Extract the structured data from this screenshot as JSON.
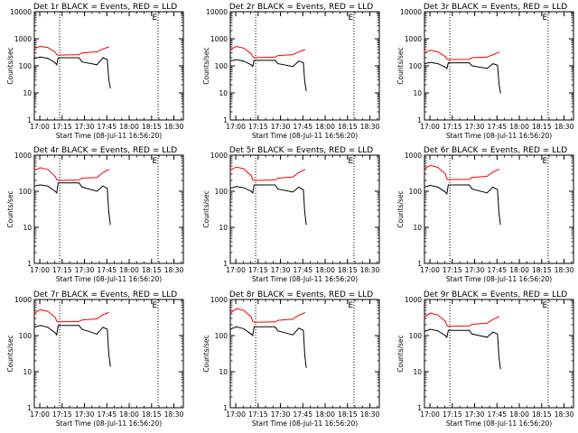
{
  "figure": {
    "xlabel": "Start Time (08-Jul-11 16:56:20)",
    "ylabel": "Counts/sec",
    "x_ticks": [
      "17:00",
      "17:15",
      "17:30",
      "17:45",
      "18:00",
      "18:15",
      "18:30"
    ],
    "marker_label": "E",
    "colors": {
      "events": "#000000",
      "lld": "#ff0000",
      "axis": "#000000"
    }
  },
  "chart_data": [
    {
      "type": "line",
      "title": "Det 1r BLACK = Events, RED = LLD",
      "xlabel": "Start Time (08-Jul-11 16:56:20)",
      "ylabel": "Counts/sec",
      "xlim_min": [
        0,
        100
      ],
      "ylim": [
        1,
        10000
      ],
      "y_ticks": [
        "1",
        "10",
        "100",
        "1000",
        "10000"
      ],
      "log_y": true,
      "vlines_min": [
        17,
        83
      ],
      "marker_min": 79,
      "data_end_min": 51,
      "series": [
        {
          "color": "#000000",
          "x_min": [
            0,
            4,
            9,
            14,
            15,
            16,
            30,
            32,
            42,
            46,
            49,
            50,
            51
          ],
          "values": [
            190,
            210,
            190,
            130,
            110,
            200,
            200,
            140,
            110,
            200,
            170,
            30,
            15
          ]
        },
        {
          "color": "#ff0000",
          "x_min": [
            0,
            4,
            9,
            14,
            15,
            16,
            30,
            32,
            42,
            46,
            49,
            50
          ],
          "values": [
            450,
            520,
            480,
            320,
            260,
            250,
            260,
            300,
            330,
            420,
            480,
            500
          ]
        }
      ]
    },
    {
      "type": "line",
      "title": "Det 2r BLACK = Events, RED = LLD",
      "xlabel": "Start Time (08-Jul-11 16:56:20)",
      "ylabel": "Counts/sec",
      "xlim_min": [
        0,
        100
      ],
      "ylim": [
        1,
        10000
      ],
      "y_ticks": [
        "1",
        "10",
        "100",
        "1000",
        "10000"
      ],
      "log_y": true,
      "vlines_min": [
        17,
        83
      ],
      "marker_min": 79,
      "data_end_min": 51,
      "series": [
        {
          "color": "#000000",
          "x_min": [
            0,
            4,
            9,
            14,
            15,
            16,
            30,
            32,
            42,
            46,
            49,
            50,
            51
          ],
          "values": [
            150,
            170,
            150,
            110,
            95,
            160,
            160,
            120,
            95,
            150,
            130,
            25,
            12
          ]
        },
        {
          "color": "#ff0000",
          "x_min": [
            0,
            4,
            9,
            14,
            15,
            16,
            30,
            32,
            42,
            46,
            49,
            50
          ],
          "values": [
            400,
            520,
            450,
            280,
            220,
            200,
            210,
            240,
            260,
            330,
            380,
            400
          ]
        }
      ]
    },
    {
      "type": "line",
      "title": "Det 3r BLACK = Events, RED = LLD",
      "xlabel": "Start Time (08-Jul-11 16:56:20)",
      "ylabel": "Counts/sec",
      "xlim_min": [
        0,
        100
      ],
      "ylim": [
        1,
        10000
      ],
      "y_ticks": [
        "1",
        "10",
        "100",
        "1000",
        "10000"
      ],
      "log_y": true,
      "vlines_min": [
        17,
        83
      ],
      "marker_min": 79,
      "data_end_min": 51,
      "series": [
        {
          "color": "#000000",
          "x_min": [
            0,
            4,
            9,
            14,
            15,
            16,
            30,
            32,
            42,
            46,
            49,
            50,
            51
          ],
          "values": [
            120,
            135,
            120,
            90,
            80,
            130,
            130,
            100,
            80,
            120,
            105,
            22,
            10
          ]
        },
        {
          "color": "#ff0000",
          "x_min": [
            0,
            4,
            9,
            14,
            15,
            16,
            30,
            32,
            42,
            46,
            49,
            50
          ],
          "values": [
            300,
            380,
            330,
            220,
            180,
            170,
            175,
            200,
            210,
            260,
            300,
            320
          ]
        }
      ]
    },
    {
      "type": "line",
      "title": "Det 4r BLACK = Events, RED = LLD",
      "xlabel": "Start Time (08-Jul-11 16:56:20)",
      "ylabel": "Counts/sec",
      "xlim_min": [
        0,
        100
      ],
      "ylim": [
        1,
        1000
      ],
      "y_ticks": [
        "1",
        "10",
        "100",
        "1000"
      ],
      "log_y": true,
      "vlines_min": [
        17,
        83
      ],
      "marker_min": 79,
      "data_end_min": 51,
      "series": [
        {
          "color": "#000000",
          "x_min": [
            0,
            4,
            9,
            14,
            15,
            16,
            30,
            32,
            42,
            46,
            49,
            50,
            51
          ],
          "values": [
            140,
            150,
            140,
            100,
            90,
            170,
            170,
            130,
            100,
            140,
            120,
            25,
            12
          ]
        },
        {
          "color": "#ff0000",
          "x_min": [
            0,
            4,
            9,
            14,
            15,
            16,
            30,
            32,
            42,
            46,
            49,
            50
          ],
          "values": [
            380,
            450,
            400,
            260,
            210,
            200,
            205,
            230,
            240,
            330,
            380,
            400
          ]
        }
      ]
    },
    {
      "type": "line",
      "title": "Det 5r BLACK = Events, RED = LLD",
      "xlabel": "Start Time (08-Jul-11 16:56:20)",
      "ylabel": "Counts/sec",
      "xlim_min": [
        0,
        100
      ],
      "ylim": [
        1,
        1000
      ],
      "y_ticks": [
        "1",
        "10",
        "100",
        "1000"
      ],
      "log_y": true,
      "vlines_min": [
        17,
        83
      ],
      "marker_min": 79,
      "data_end_min": 51,
      "series": [
        {
          "color": "#000000",
          "x_min": [
            0,
            4,
            9,
            14,
            15,
            16,
            30,
            32,
            42,
            46,
            49,
            50,
            51
          ],
          "values": [
            120,
            135,
            125,
            100,
            90,
            150,
            150,
            115,
            95,
            130,
            110,
            25,
            12
          ]
        },
        {
          "color": "#ff0000",
          "x_min": [
            0,
            4,
            9,
            14,
            15,
            16,
            30,
            32,
            42,
            46,
            49,
            50
          ],
          "values": [
            380,
            470,
            420,
            270,
            210,
            200,
            205,
            230,
            250,
            330,
            380,
            400
          ]
        }
      ]
    },
    {
      "type": "line",
      "title": "Det 6r BLACK = Events, RED = LLD",
      "xlabel": "Start Time (08-Jul-11 16:56:20)",
      "ylabel": "Counts/sec",
      "xlim_min": [
        0,
        100
      ],
      "ylim": [
        1,
        1000
      ],
      "y_ticks": [
        "1",
        "10",
        "100",
        "1000"
      ],
      "log_y": true,
      "vlines_min": [
        17,
        83
      ],
      "marker_min": 79,
      "data_end_min": 51,
      "series": [
        {
          "color": "#000000",
          "x_min": [
            0,
            4,
            9,
            14,
            15,
            16,
            30,
            32,
            42,
            46,
            49,
            50,
            51
          ],
          "values": [
            130,
            145,
            130,
            95,
            85,
            150,
            150,
            115,
            90,
            130,
            110,
            25,
            12
          ]
        },
        {
          "color": "#ff0000",
          "x_min": [
            0,
            4,
            9,
            14,
            15,
            16,
            30,
            32,
            42,
            46,
            49,
            50
          ],
          "values": [
            420,
            520,
            460,
            300,
            220,
            210,
            215,
            240,
            260,
            340,
            390,
            410
          ]
        }
      ]
    },
    {
      "type": "line",
      "title": "Det 7r BLACK = Events, RED = LLD",
      "xlabel": "Start Time (08-Jul-11 16:56:20)",
      "ylabel": "Counts/sec",
      "xlim_min": [
        0,
        100
      ],
      "ylim": [
        1,
        1000
      ],
      "y_ticks": [
        "1",
        "10",
        "100",
        "1000"
      ],
      "log_y": true,
      "vlines_min": [
        17,
        83
      ],
      "marker_min": 79,
      "data_end_min": 51,
      "series": [
        {
          "color": "#000000",
          "x_min": [
            0,
            4,
            9,
            14,
            15,
            16,
            30,
            32,
            42,
            46,
            49,
            50,
            51
          ],
          "values": [
            170,
            190,
            170,
            120,
            105,
            190,
            190,
            150,
            110,
            170,
            150,
            30,
            14
          ]
        },
        {
          "color": "#ff0000",
          "x_min": [
            0,
            4,
            9,
            14,
            15,
            16,
            30,
            32,
            42,
            46,
            49,
            50
          ],
          "values": [
            420,
            520,
            470,
            320,
            250,
            240,
            245,
            270,
            290,
            380,
            420,
            440
          ]
        }
      ]
    },
    {
      "type": "line",
      "title": "Det 8r BLACK = Events, RED = LLD",
      "xlabel": "Start Time (08-Jul-11 16:56:20)",
      "ylabel": "Counts/sec",
      "xlim_min": [
        0,
        100
      ],
      "ylim": [
        1,
        1000
      ],
      "y_ticks": [
        "1",
        "10",
        "100",
        "1000"
      ],
      "log_y": true,
      "vlines_min": [
        17,
        83
      ],
      "marker_min": 79,
      "data_end_min": 51,
      "series": [
        {
          "color": "#000000",
          "x_min": [
            0,
            4,
            9,
            14,
            15,
            16,
            30,
            32,
            42,
            46,
            49,
            50,
            51
          ],
          "values": [
            150,
            175,
            155,
            110,
            100,
            175,
            175,
            135,
            105,
            160,
            140,
            28,
            13
          ]
        },
        {
          "color": "#ff0000",
          "x_min": [
            0,
            4,
            9,
            14,
            15,
            16,
            30,
            32,
            42,
            46,
            49,
            50
          ],
          "values": [
            420,
            560,
            500,
            330,
            250,
            235,
            240,
            265,
            285,
            370,
            410,
            430
          ]
        }
      ]
    },
    {
      "type": "line",
      "title": "Det 9r BLACK = Events, RED = LLD",
      "xlabel": "Start Time (08-Jul-11 16:56:20)",
      "ylabel": "Counts/sec",
      "xlim_min": [
        0,
        100
      ],
      "ylim": [
        1,
        1000
      ],
      "y_ticks": [
        "1",
        "10",
        "100",
        "1000"
      ],
      "log_y": true,
      "vlines_min": [
        17,
        83
      ],
      "marker_min": 79,
      "data_end_min": 51,
      "series": [
        {
          "color": "#000000",
          "x_min": [
            0,
            4,
            9,
            14,
            15,
            16,
            30,
            32,
            42,
            46,
            49,
            50,
            51
          ],
          "values": [
            130,
            150,
            135,
            100,
            90,
            140,
            140,
            110,
            90,
            125,
            110,
            25,
            12
          ]
        },
        {
          "color": "#ff0000",
          "x_min": [
            0,
            4,
            9,
            14,
            15,
            16,
            30,
            32,
            42,
            46,
            49,
            50
          ],
          "values": [
            330,
            420,
            370,
            250,
            190,
            180,
            185,
            205,
            220,
            280,
            320,
            340
          ]
        }
      ]
    }
  ]
}
